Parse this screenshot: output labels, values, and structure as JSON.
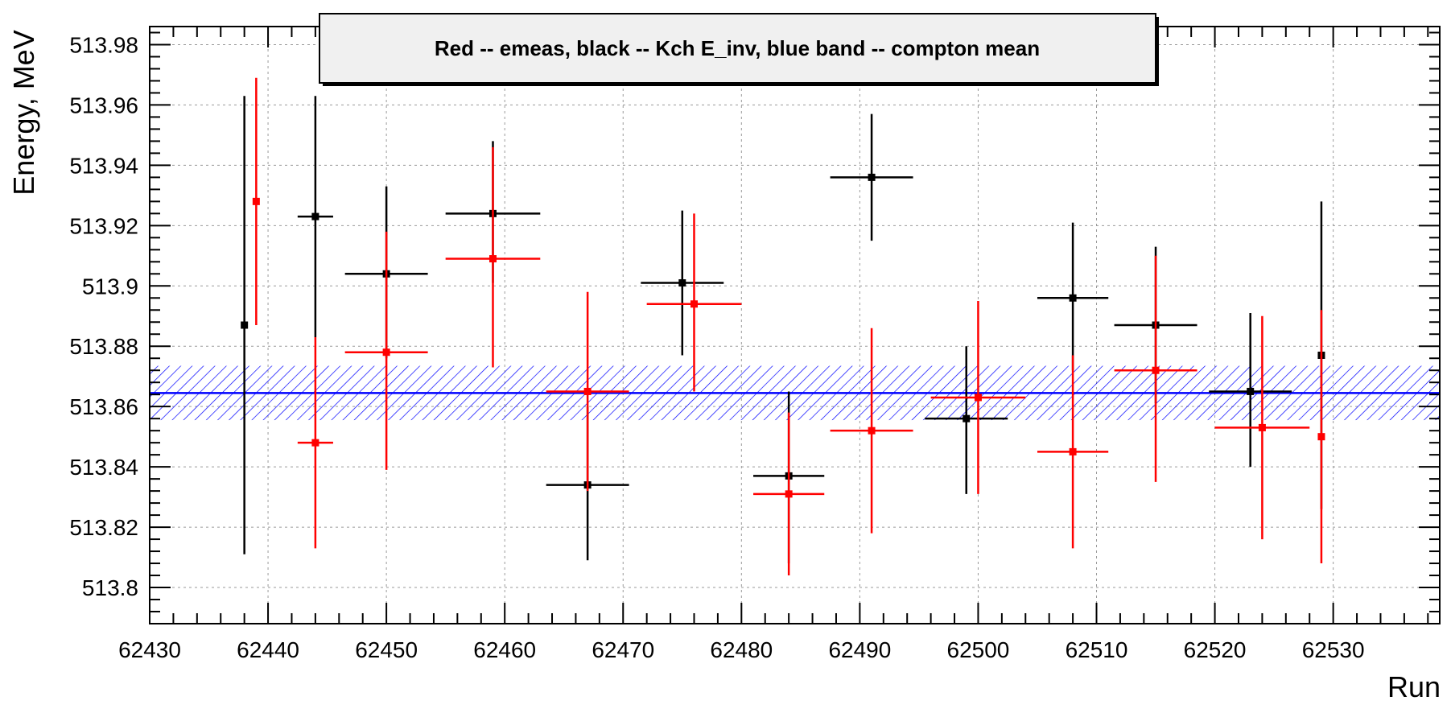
{
  "chart_data": {
    "type": "scatter",
    "title": "Red -- emeas, black -- Kch E_inv, blue band -- compton mean",
    "xlabel": "Run",
    "ylabel": "Energy, MeV",
    "xlim": [
      62430,
      62539
    ],
    "ylim": [
      513.788,
      513.986
    ],
    "x_ticks": [
      62430,
      62440,
      62450,
      62460,
      62470,
      62480,
      62490,
      62500,
      62510,
      62520,
      62530
    ],
    "x_tick_labels": [
      "62430",
      "62440",
      "62450",
      "62460",
      "62470",
      "62480",
      "62490",
      "62500",
      "62510",
      "62520",
      "62530"
    ],
    "y_ticks": [
      513.8,
      513.82,
      513.84,
      513.86,
      513.88,
      513.9,
      513.92,
      513.94,
      513.96,
      513.98
    ],
    "y_tick_labels": [
      "513.8",
      "513.82",
      "513.84",
      "513.86",
      "513.88",
      "513.9",
      "513.92",
      "513.94",
      "513.96",
      "513.98"
    ],
    "grid": true,
    "legend_position": "top-center",
    "band": {
      "color": "#0000ff",
      "mean": 513.8645,
      "low": 513.8555,
      "high": 513.8735
    },
    "series": [
      {
        "color": "#000000",
        "points": [
          {
            "x": 62438.0,
            "xerr": 0.0,
            "y": 513.887,
            "ylo": 513.811,
            "yhi": 513.963
          },
          {
            "x": 62444.0,
            "xerr": 1.5,
            "y": 513.923,
            "ylo": 513.883,
            "yhi": 513.963
          },
          {
            "x": 62450.0,
            "xerr": 3.5,
            "y": 513.904,
            "ylo": 513.876,
            "yhi": 513.933
          },
          {
            "x": 62459.0,
            "xerr": 4.0,
            "y": 513.924,
            "ylo": 513.901,
            "yhi": 513.948
          },
          {
            "x": 62467.0,
            "xerr": 3.5,
            "y": 513.834,
            "ylo": 513.809,
            "yhi": 513.86
          },
          {
            "x": 62475.0,
            "xerr": 3.5,
            "y": 513.901,
            "ylo": 513.877,
            "yhi": 513.925
          },
          {
            "x": 62484.0,
            "xerr": 3.0,
            "y": 513.837,
            "ylo": 513.808,
            "yhi": 513.865
          },
          {
            "x": 62491.0,
            "xerr": 3.5,
            "y": 513.936,
            "ylo": 513.915,
            "yhi": 513.957
          },
          {
            "x": 62499.0,
            "xerr": 3.5,
            "y": 513.856,
            "ylo": 513.831,
            "yhi": 513.88
          },
          {
            "x": 62508.0,
            "xerr": 3.0,
            "y": 513.896,
            "ylo": 513.872,
            "yhi": 513.921
          },
          {
            "x": 62515.0,
            "xerr": 3.5,
            "y": 513.887,
            "ylo": 513.861,
            "yhi": 513.913
          },
          {
            "x": 62523.0,
            "xerr": 3.5,
            "y": 513.865,
            "ylo": 513.84,
            "yhi": 513.891
          },
          {
            "x": 62529.0,
            "xerr": 0.0,
            "y": 513.877,
            "ylo": 513.826,
            "yhi": 513.928
          }
        ]
      },
      {
        "color": "#ff0000",
        "points": [
          {
            "x": 62439.0,
            "xerr": 0.0,
            "y": 513.928,
            "ylo": 513.887,
            "yhi": 513.969
          },
          {
            "x": 62444.0,
            "xerr": 1.5,
            "y": 513.848,
            "ylo": 513.813,
            "yhi": 513.883
          },
          {
            "x": 62450.0,
            "xerr": 3.5,
            "y": 513.878,
            "ylo": 513.839,
            "yhi": 513.918
          },
          {
            "x": 62459.0,
            "xerr": 4.0,
            "y": 513.909,
            "ylo": 513.873,
            "yhi": 513.946
          },
          {
            "x": 62467.0,
            "xerr": 3.5,
            "y": 513.865,
            "ylo": 513.832,
            "yhi": 513.898
          },
          {
            "x": 62476.0,
            "xerr": 4.0,
            "y": 513.894,
            "ylo": 513.865,
            "yhi": 513.924
          },
          {
            "x": 62484.0,
            "xerr": 3.0,
            "y": 513.831,
            "ylo": 513.804,
            "yhi": 513.858
          },
          {
            "x": 62491.0,
            "xerr": 3.5,
            "y": 513.852,
            "ylo": 513.818,
            "yhi": 513.886
          },
          {
            "x": 62500.0,
            "xerr": 4.0,
            "y": 513.863,
            "ylo": 513.831,
            "yhi": 513.895
          },
          {
            "x": 62508.0,
            "xerr": 3.0,
            "y": 513.845,
            "ylo": 513.813,
            "yhi": 513.877
          },
          {
            "x": 62515.0,
            "xerr": 3.5,
            "y": 513.872,
            "ylo": 513.835,
            "yhi": 513.91
          },
          {
            "x": 62524.0,
            "xerr": 4.0,
            "y": 513.853,
            "ylo": 513.816,
            "yhi": 513.89
          },
          {
            "x": 62529.0,
            "xerr": 0.0,
            "y": 513.85,
            "ylo": 513.808,
            "yhi": 513.892
          }
        ]
      }
    ]
  }
}
